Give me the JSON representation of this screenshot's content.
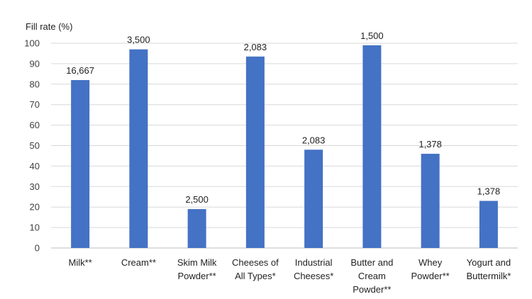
{
  "chart_data": {
    "type": "bar",
    "ylabel": "Fill rate (%)",
    "ylim": [
      0,
      100
    ],
    "yticks": [
      "0",
      "10",
      "20",
      "30",
      "40",
      "50",
      "60",
      "70",
      "80",
      "90",
      "100"
    ],
    "grid": true,
    "legend": "none",
    "bar_color": "#4472C4",
    "categories": [
      [
        "Milk**"
      ],
      [
        "Cream**"
      ],
      [
        "Skim Milk",
        "Powder**"
      ],
      [
        "Cheeses of",
        "All Types*"
      ],
      [
        "Industrial",
        "Cheeses*"
      ],
      [
        "Butter and",
        "Cream",
        "Powder**"
      ],
      [
        "Whey",
        "Powder**"
      ],
      [
        "Yogurt and",
        "Buttermilk*"
      ]
    ],
    "values": [
      82,
      97,
      19,
      93.5,
      48,
      99,
      46,
      23
    ],
    "data_labels": [
      "16,667",
      "3,500",
      "2,500",
      "2,083",
      "2,083",
      "1,500",
      "1,378",
      "1,378"
    ]
  }
}
